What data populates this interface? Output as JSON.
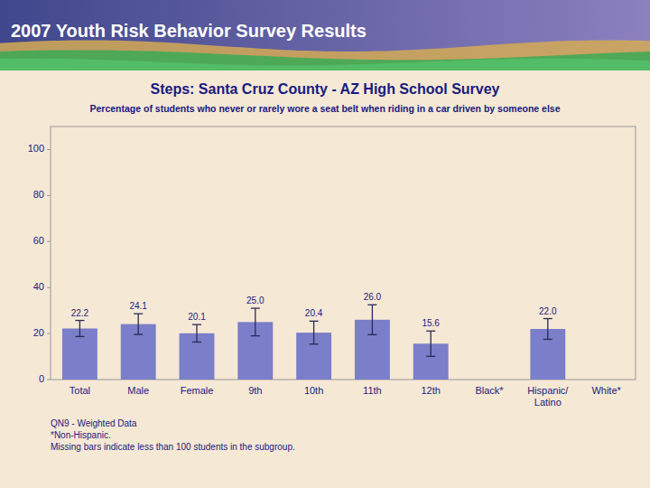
{
  "chart_data": {
    "type": "bar",
    "title": "Steps: Santa Cruz County - AZ High School Survey",
    "subtitle": "Percentage of students who never or rarely wore a seat belt when riding in a car driven by someone else",
    "annotations": [
      "2007 Youth Risk Behavior Survey Results",
      "QN9 - Weighted Data\n*Non-Hispanic.\nMissing bars indicate less than 100 students in the subgroup."
    ],
    "categories": [
      "Total",
      "Male",
      "Female",
      "9th",
      "10th",
      "11th",
      "12th",
      "Black*",
      "Hispanic/\nLatino",
      "White*"
    ],
    "values": [
      22.2,
      24.1,
      20.1,
      25.0,
      20.4,
      26.0,
      15.6,
      null,
      22.0,
      null
    ],
    "value_labels": [
      "22.2",
      "24.1",
      "20.1",
      "25.0",
      "20.4",
      "26.0",
      "15.6",
      null,
      "22.0",
      null
    ],
    "errors": [
      3.5,
      4.5,
      3.8,
      6.0,
      5.0,
      6.5,
      5.5,
      null,
      4.5,
      null
    ],
    "color": "#7b7ec8",
    "ylim": [
      0,
      110
    ],
    "yticks": [
      0,
      20,
      40,
      60,
      80,
      100
    ],
    "grid": false,
    "data_labels": true
  }
}
